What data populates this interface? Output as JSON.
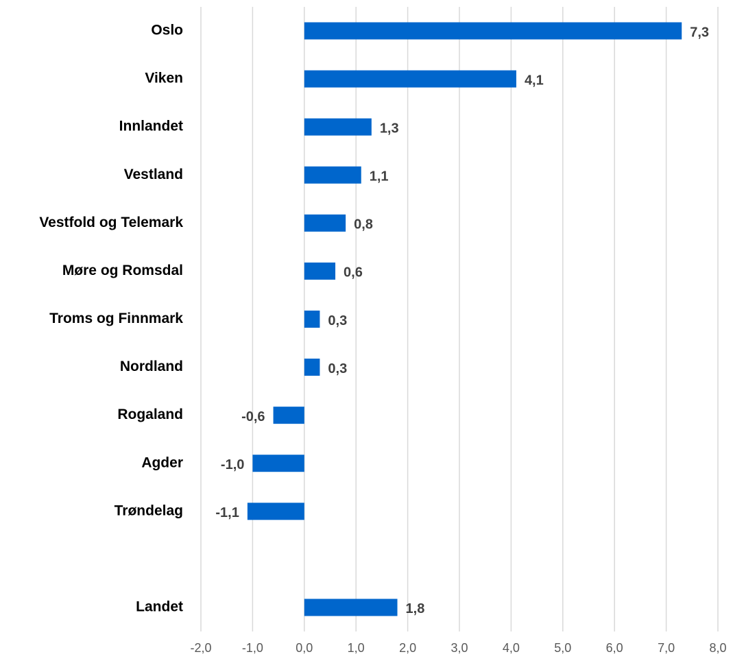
{
  "chart_data": {
    "type": "bar",
    "orientation": "horizontal",
    "categories": [
      "Oslo",
      "Viken",
      "Innlandet",
      "Vestland",
      "Vestfold og Telemark",
      "Møre og Romsdal",
      "Troms og Finnmark",
      "Nordland",
      "Rogaland",
      "Agder",
      "Trøndelag",
      null,
      "Landet"
    ],
    "values": [
      7.3,
      4.1,
      1.3,
      1.1,
      0.8,
      0.6,
      0.3,
      0.3,
      -0.6,
      -1.0,
      -1.1,
      null,
      1.8
    ],
    "value_labels": [
      "7,3",
      "4,1",
      "1,3",
      "1,1",
      "0,8",
      "0,6",
      "0,3",
      "0,3",
      "-0,6",
      "-1,0",
      "-1,1",
      null,
      "1,8"
    ],
    "color": "#0066cc",
    "xlim": [
      -2,
      8
    ],
    "xticks": [
      {
        "value": -2,
        "label": "-2,0"
      },
      {
        "value": -1,
        "label": "-1,0"
      },
      {
        "value": 0,
        "label": "0,0"
      },
      {
        "value": 1,
        "label": "1,0"
      },
      {
        "value": 2,
        "label": "2,0"
      },
      {
        "value": 3,
        "label": "3,0"
      },
      {
        "value": 4,
        "label": "4,0"
      },
      {
        "value": 5,
        "label": "5,0"
      },
      {
        "value": 6,
        "label": "6,0"
      },
      {
        "value": 7,
        "label": "7,0"
      },
      {
        "value": 8,
        "label": "8,0"
      }
    ],
    "grid": true
  }
}
